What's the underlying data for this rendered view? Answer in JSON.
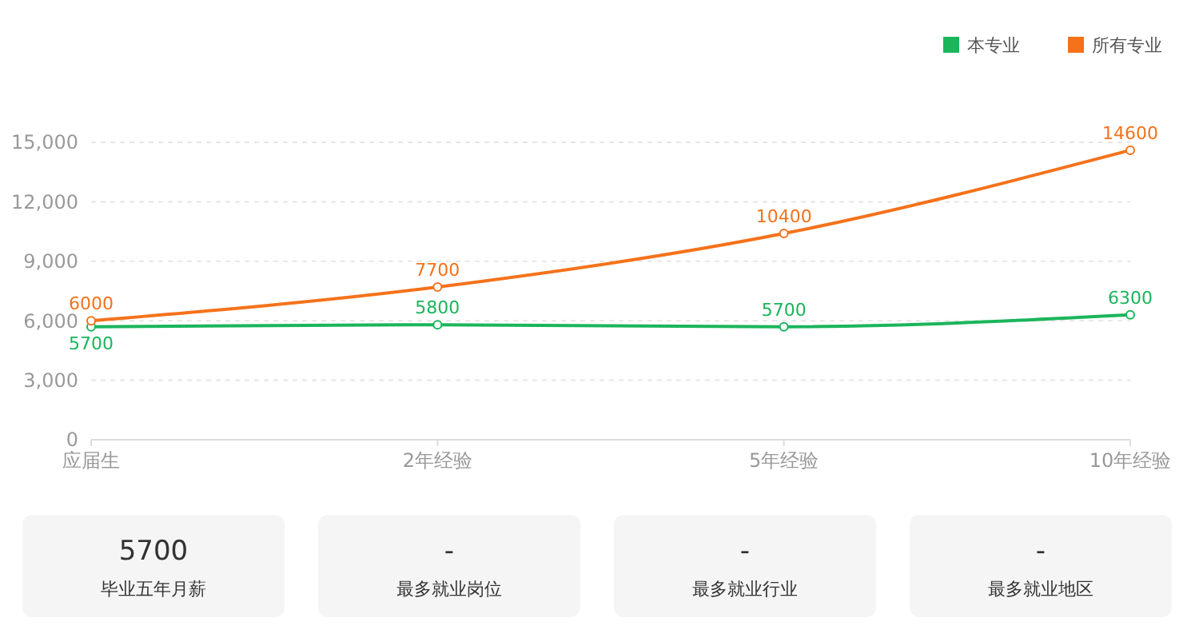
{
  "chart_data": [
    {
      "type": "line",
      "categories": [
        "应届生",
        "2年经验",
        "5年经验",
        "10年经验"
      ],
      "series": [
        {
          "name": "本专业",
          "color": "#1bb55c",
          "values": [
            5700,
            5800,
            5700,
            6300
          ]
        },
        {
          "name": "所有专业",
          "color": "#f5721b",
          "values": [
            6000,
            7700,
            10400,
            14600
          ]
        }
      ],
      "ylim": [
        0,
        15000
      ],
      "yticks": [
        {
          "value": 0,
          "label": "0"
        },
        {
          "value": 3000,
          "label": "3,000"
        },
        {
          "value": 6000,
          "label": "6,000"
        },
        {
          "value": 9000,
          "label": "9,000"
        },
        {
          "value": 12000,
          "label": "12,000"
        },
        {
          "value": 15000,
          "label": "15,000"
        }
      ],
      "grid": "y",
      "legend": "top right",
      "marker": "circle",
      "data_labels": true
    },
    {
      "type": "other",
      "categories": [
        "毕业五年月薪",
        "最多就业岗位",
        "最多就业行业",
        "最多就业地区"
      ],
      "value_labels": [
        "5700",
        "-",
        "-",
        "-"
      ]
    }
  ]
}
